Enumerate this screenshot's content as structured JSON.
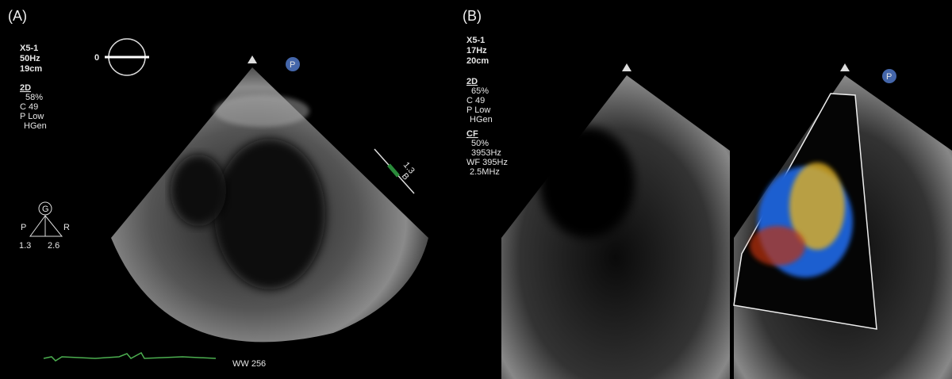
{
  "panel_a": {
    "label": "(A)",
    "settings": [
      "X5-1",
      "50Hz",
      "19cm"
    ],
    "mode": "2D",
    "params": [
      "58%",
      "C 49",
      "P Low",
      "HGen"
    ],
    "angle": "0",
    "probe_icon": "P",
    "orientation": {
      "badge": "G",
      "left": "P",
      "right": "R",
      "left_value": "1.3",
      "right_value": "2.6"
    },
    "caliper": {
      "value": "1.3",
      "label": "B"
    },
    "footer": "WW 256"
  },
  "panel_b": {
    "label": "(B)",
    "settings": [
      "X5-1",
      "17Hz",
      "20cm"
    ],
    "mode": "2D",
    "params": [
      "65%",
      "C 49",
      "P Low",
      "HGen"
    ],
    "color_mode": "CF",
    "color_params": [
      "50%",
      "3953Hz",
      "WF 395Hz",
      "2.5MHz"
    ],
    "probe_icon": "P"
  }
}
